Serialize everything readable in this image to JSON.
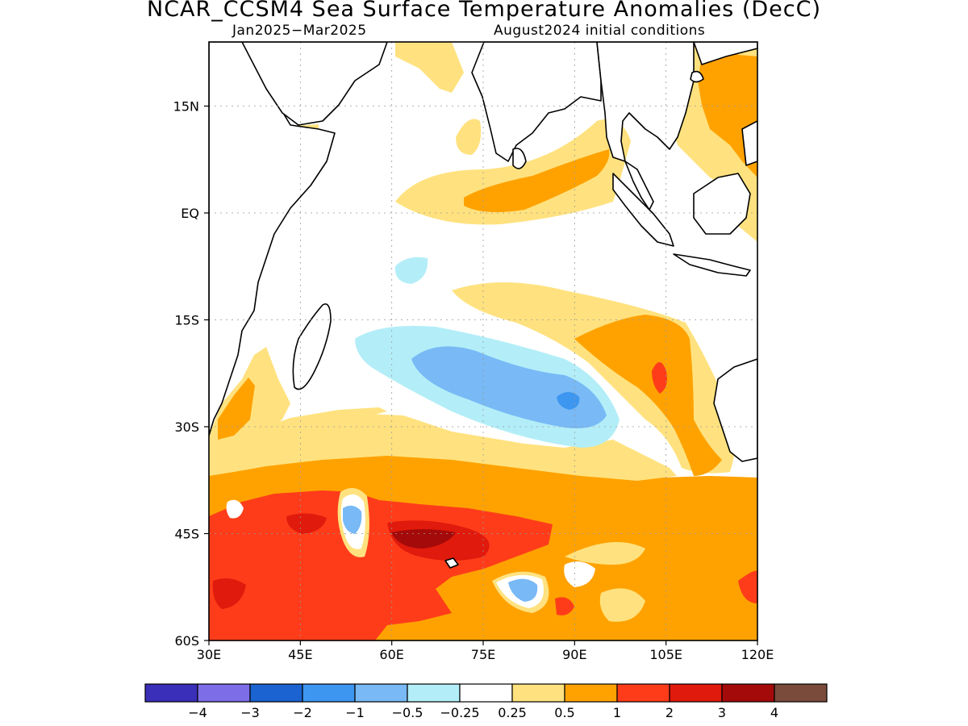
{
  "title": "NCAR_CCSM4 Sea Surface Temperature Anomalies (DecC)",
  "subtitle_left": "Jan2025−Mar2025",
  "subtitle_right": "August2024 initial conditions",
  "map": {
    "lon_range": [
      30,
      120
    ],
    "lat_range": [
      -60,
      24
    ],
    "lon_ticks": [
      {
        "value": 30,
        "label": "30E"
      },
      {
        "value": 45,
        "label": "45E"
      },
      {
        "value": 60,
        "label": "60E"
      },
      {
        "value": 75,
        "label": "75E"
      },
      {
        "value": 90,
        "label": "90E"
      },
      {
        "value": 105,
        "label": "105E"
      },
      {
        "value": 120,
        "label": "120E"
      }
    ],
    "lat_ticks": [
      {
        "value": 15,
        "label": "15N"
      },
      {
        "value": 0,
        "label": "EQ"
      },
      {
        "value": -15,
        "label": "15S"
      },
      {
        "value": -30,
        "label": "30S"
      },
      {
        "value": -45,
        "label": "45S"
      },
      {
        "value": -60,
        "label": "60S"
      }
    ],
    "grid": true
  },
  "colorbar": {
    "colors": [
      "#3a2fb8",
      "#7d6ee8",
      "#1a63d0",
      "#3d96f0",
      "#78b9f6",
      "#b3eef8",
      "#ffffff",
      "#ffe27f",
      "#ffa200",
      "#ff3c1a",
      "#e01a0c",
      "#a50a0a",
      "#7a4a3a"
    ],
    "labels": [
      "−4",
      "−3",
      "−2",
      "−1",
      "−0.5",
      "−0.25",
      "0.25",
      "0.5",
      "1",
      "2",
      "3",
      "4"
    ]
  }
}
